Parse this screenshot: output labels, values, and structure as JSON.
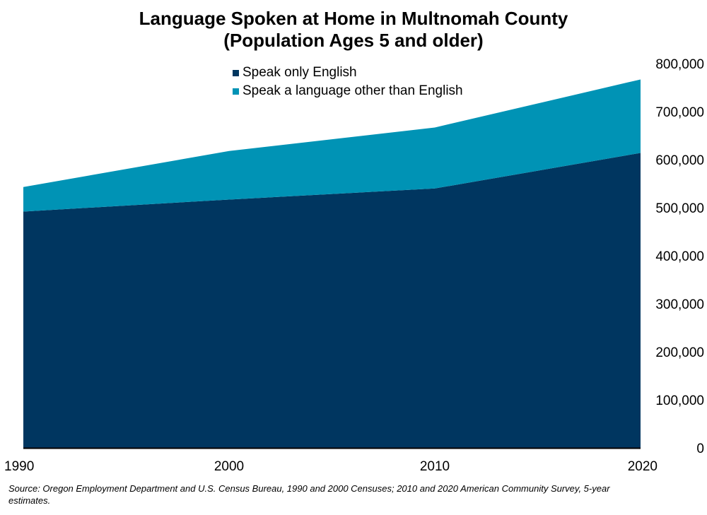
{
  "chart_data": {
    "type": "area",
    "stacked": true,
    "title": [
      "Language Spoken at Home in Multnomah County",
      "(Population Ages 5 and older)"
    ],
    "x": [
      "1990",
      "2000",
      "2010",
      "2020"
    ],
    "series": [
      {
        "name": "Speak only English",
        "values": [
          492000,
          517000,
          540000,
          614000
        ],
        "color": "#003660"
      },
      {
        "name": "Speak a language other than English",
        "values": [
          51000,
          101000,
          127000,
          153000
        ],
        "color": "#0093b5"
      }
    ],
    "ylim": [
      0,
      800000
    ],
    "yticks": [
      "0",
      "100,000",
      "200,000",
      "300,000",
      "400,000",
      "500,000",
      "600,000",
      "700,000",
      "800,000"
    ],
    "y_axis_side": "right",
    "grid": false,
    "legend_position": "top-center"
  },
  "source": "Source: Oregon Employment Department and U.S. Census Bureau, 1990 and 2000 Censuses; 2010 and 2020 American Community Survey, 5-year estimates."
}
